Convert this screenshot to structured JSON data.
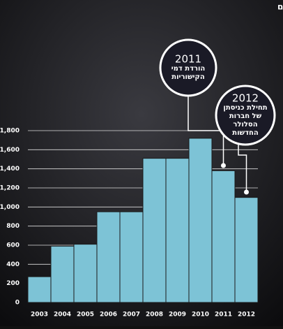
{
  "chart_data": {
    "type": "bar",
    "title": "גביית מס חברות בענף התקשורת, במיליוני שקלים",
    "categories": [
      "2003",
      "2004",
      "2005",
      "2006",
      "2007",
      "2008",
      "2009",
      "2010",
      "2011",
      "2012"
    ],
    "values": [
      270,
      590,
      610,
      950,
      950,
      1510,
      1510,
      1720,
      1380,
      1100
    ],
    "color": "#7dc3d6",
    "ylim": [
      0,
      1800
    ],
    "yticks": [
      0,
      200,
      400,
      600,
      800,
      {
        "value": 1000,
        "label": "1,000"
      },
      {
        "value": 1200,
        "label": "1,200"
      },
      {
        "value": 1400,
        "label": "1,400"
      },
      {
        "value": 1600,
        "label": "1,600"
      },
      {
        "value": 1800,
        "label": "1,800"
      }
    ],
    "grid": true,
    "annotations": [
      {
        "year": "2011",
        "lines": [
          "הורדת דמי",
          "הקישוריות"
        ]
      },
      {
        "year": "2012",
        "lines": [
          "תחילת כניסתן",
          "של חברות",
          "הסלולר",
          "החדשות"
        ]
      }
    ]
  }
}
